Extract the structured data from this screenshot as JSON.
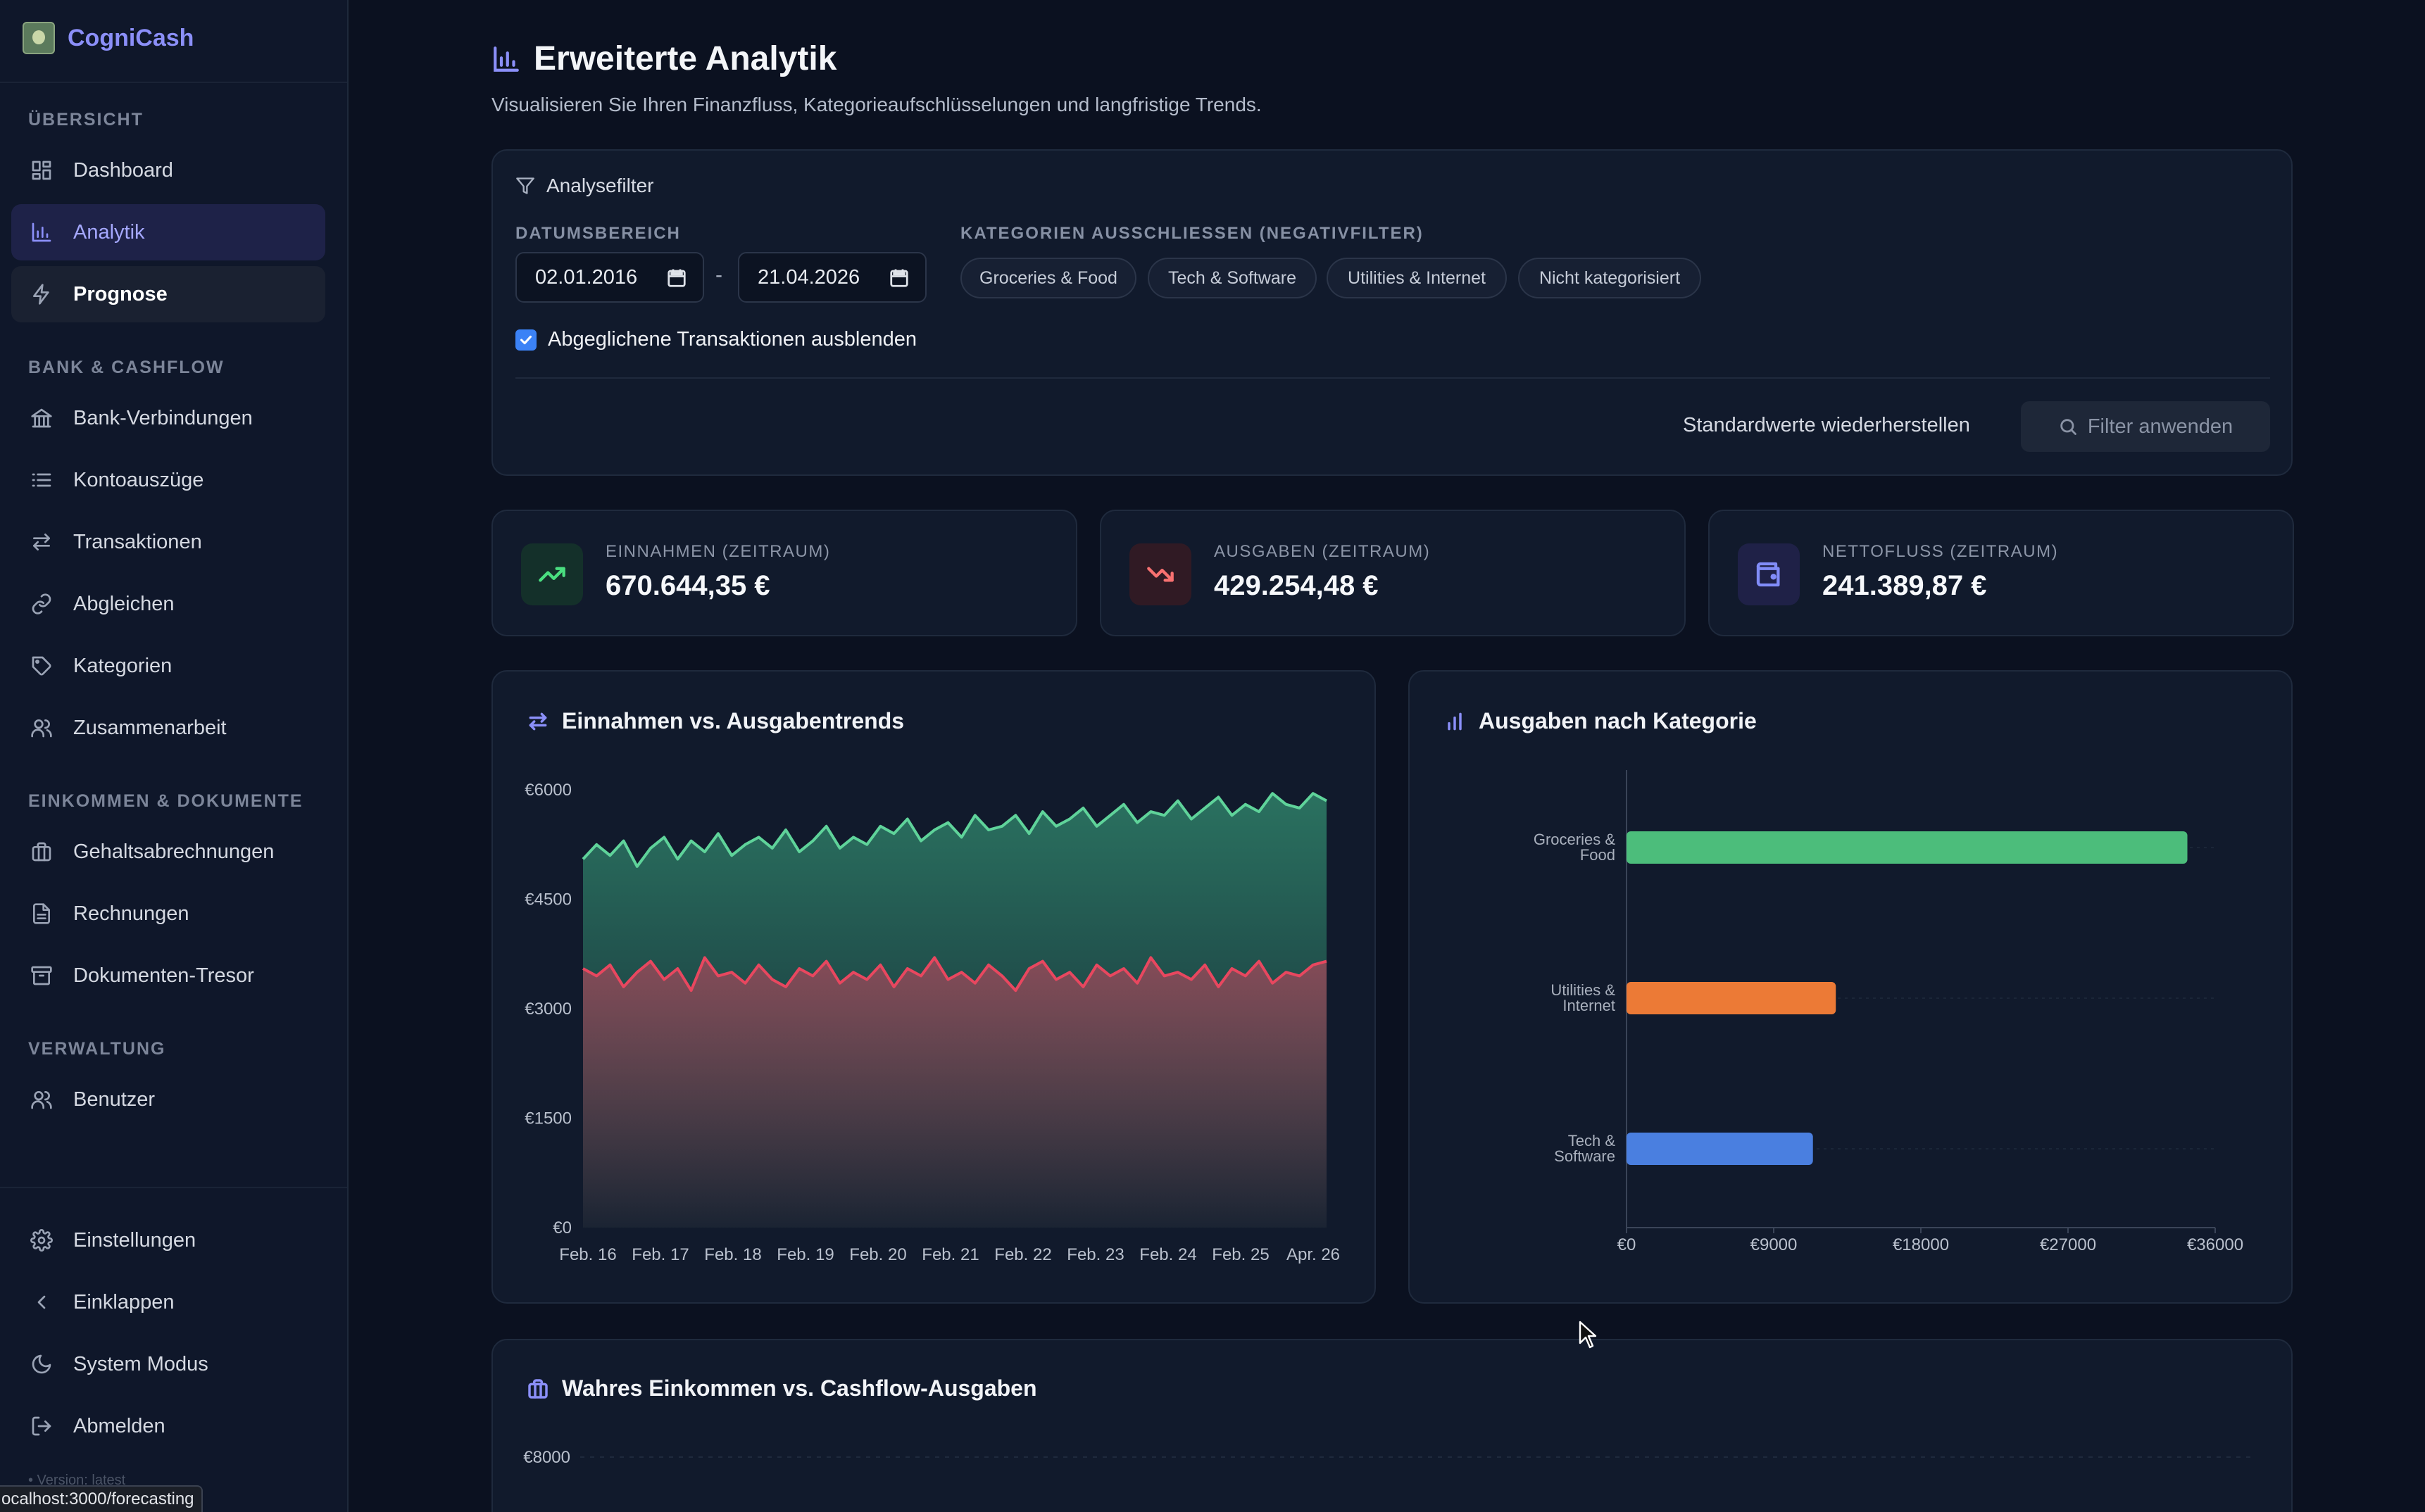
{
  "brand": {
    "name": "CogniCash"
  },
  "sidebar": {
    "sections": [
      {
        "title": "ÜBERSICHT"
      },
      {
        "title": "BANK & CASHFLOW"
      },
      {
        "title": "EINKOMMEN & DOKUMENTE"
      },
      {
        "title": "VERWALTUNG"
      }
    ],
    "items": [
      {
        "label": "Dashboard",
        "icon": "dashboard-icon"
      },
      {
        "label": "Analytik",
        "icon": "bar-chart-icon"
      },
      {
        "label": "Prognose",
        "icon": "lightning-icon"
      },
      {
        "label": "Bank-Verbindungen",
        "icon": "bank-icon"
      },
      {
        "label": "Kontoauszüge",
        "icon": "list-icon"
      },
      {
        "label": "Transaktionen",
        "icon": "transfer-arrows-icon"
      },
      {
        "label": "Abgleichen",
        "icon": "link-icon"
      },
      {
        "label": "Kategorien",
        "icon": "tag-icon"
      },
      {
        "label": "Zusammenarbeit",
        "icon": "users-icon"
      },
      {
        "label": "Gehaltsabrechnungen",
        "icon": "briefcase-icon"
      },
      {
        "label": "Rechnungen",
        "icon": "document-icon"
      },
      {
        "label": "Dokumenten-Tresor",
        "icon": "archive-icon"
      },
      {
        "label": "Benutzer",
        "icon": "users-icon"
      }
    ],
    "bottom": [
      {
        "label": "Einstellungen",
        "icon": "gear-icon"
      },
      {
        "label": "Einklappen",
        "icon": "chevron-left-icon"
      },
      {
        "label": "System Modus",
        "icon": "moon-icon"
      },
      {
        "label": "Abmelden",
        "icon": "logout-icon"
      }
    ],
    "version": "• Version: latest"
  },
  "status_url": "ocalhost:3000/forecasting",
  "page": {
    "title": "Erweiterte Analytik",
    "subtitle": "Visualisieren Sie Ihren Finanzfluss, Kategorieaufschlüsselungen und langfristige Trends."
  },
  "filter": {
    "title": "Analysefilter",
    "date_label": "DATUMSBEREICH",
    "date_from": "02.01.2016",
    "date_dash": "-",
    "date_to": "21.04.2026",
    "exclude_label": "KATEGORIEN AUSSCHLIESSEN (NEGATIVFILTER)",
    "chips": [
      "Groceries & Food",
      "Tech & Software",
      "Utilities & Internet",
      "Nicht kategorisiert"
    ],
    "hide_reconciled_label": "Abgeglichene Transaktionen ausblenden",
    "hide_reconciled": true,
    "reset_label": "Standardwerte wiederherstellen",
    "apply_label": "Filter anwenden"
  },
  "stats": [
    {
      "label": "EINNAHMEN (ZEITRAUM)",
      "value": "670.644,35 €",
      "icon": "trending-up-icon",
      "color": "#4ade80"
    },
    {
      "label": "AUSGABEN (ZEITRAUM)",
      "value": "429.254,48 €",
      "icon": "trending-down-icon",
      "color": "#f87171"
    },
    {
      "label": "NETTOFLUSS (ZEITRAUM)",
      "value": "241.389,87 €",
      "icon": "wallet-icon",
      "color": "#818cf8"
    }
  ],
  "charts": {
    "trend_title": "Einnahmen vs. Ausgabentrends",
    "category_title": "Ausgaben nach Kategorie",
    "bottom_title": "Wahres Einkommen vs. Cashflow-Ausgaben",
    "bottom_first_tick": "€8000"
  },
  "chart_data": [
    {
      "type": "area",
      "title": "Einnahmen vs. Ausgabentrends",
      "ylim": [
        0,
        6000
      ],
      "y_ticks": [
        "€0",
        "€1500",
        "€3000",
        "€4500",
        "€6000"
      ],
      "x_ticks": [
        "Feb. 16",
        "Feb. 17",
        "Feb. 18",
        "Feb. 19",
        "Feb. 20",
        "Feb. 21",
        "Feb. 22",
        "Feb. 23",
        "Feb. 24",
        "Feb. 25",
        "Apr. 26"
      ],
      "series": [
        {
          "color": "#5fd39a",
          "values": [
            5050,
            5250,
            5100,
            5300,
            4950,
            5200,
            5350,
            5050,
            5300,
            5150,
            5400,
            5100,
            5250,
            5350,
            5200,
            5450,
            5150,
            5300,
            5500,
            5200,
            5350,
            5250,
            5500,
            5400,
            5600,
            5300,
            5450,
            5550,
            5350,
            5650,
            5450,
            5500,
            5650,
            5400,
            5700,
            5500,
            5600,
            5750,
            5500,
            5650,
            5800,
            5550,
            5700,
            5650,
            5850,
            5600,
            5750,
            5900,
            5650,
            5800,
            5700,
            5950,
            5800,
            5750,
            5950,
            5850
          ]
        },
        {
          "color": "#e8475f",
          "values": [
            3550,
            3450,
            3600,
            3300,
            3500,
            3650,
            3400,
            3550,
            3250,
            3700,
            3450,
            3500,
            3350,
            3600,
            3400,
            3300,
            3550,
            3450,
            3650,
            3350,
            3500,
            3400,
            3600,
            3300,
            3550,
            3450,
            3700,
            3400,
            3500,
            3350,
            3600,
            3450,
            3250,
            3550,
            3650,
            3400,
            3500,
            3300,
            3600,
            3450,
            3550,
            3350,
            3700,
            3450,
            3500,
            3400,
            3600,
            3300,
            3550,
            3450,
            3650,
            3350,
            3500,
            3450,
            3600,
            3650
          ]
        }
      ]
    },
    {
      "type": "bar",
      "orientation": "horizontal",
      "title": "Ausgaben nach Kategorie",
      "categories": [
        [
          "Groceries &",
          "Food"
        ],
        [
          "Utilities &",
          "Internet"
        ],
        [
          "Tech &",
          "Software"
        ]
      ],
      "values": [
        34300,
        12800,
        11400
      ],
      "colors": [
        "#4cbd7b",
        "#ec7a36",
        "#4a7fe0"
      ],
      "xlim": [
        0,
        36000
      ],
      "x_ticks": [
        "€0",
        "€9000",
        "€18000",
        "€27000",
        "€36000"
      ]
    }
  ]
}
